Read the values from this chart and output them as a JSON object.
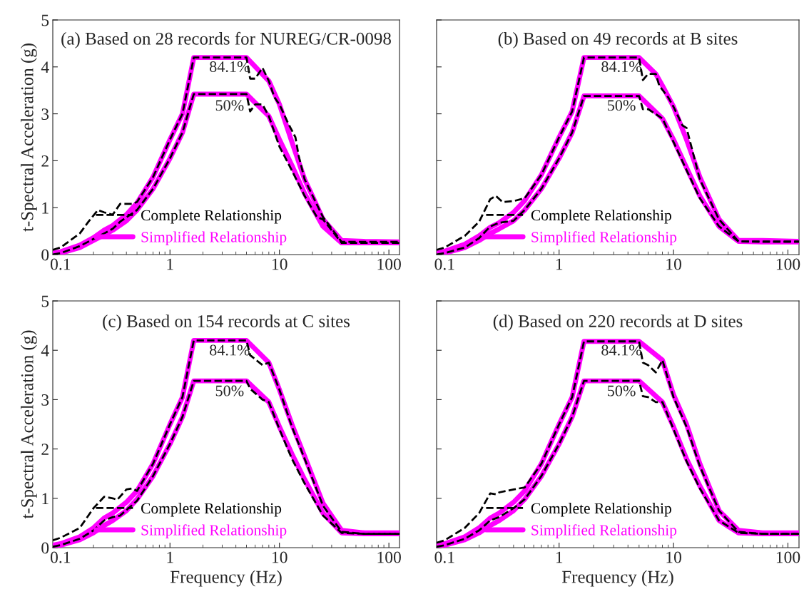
{
  "chart_data": [
    {
      "type": "line",
      "title": "(a) Based on 28 records for NUREG/CR-0098",
      "ylabel": "t-Spectral Acceleration (g)",
      "xlim": [
        0.085,
        125
      ],
      "xticks": [
        0.1,
        1,
        10,
        100
      ],
      "ylim": [
        0,
        5
      ],
      "yticks": [
        0,
        1,
        2,
        3,
        4,
        5
      ],
      "log": "x",
      "grid": false,
      "legend": "bottom",
      "annotations": [
        "84.1%",
        "50%"
      ],
      "series": [
        {
          "name": "Simplified Relationship",
          "color": "#ff00ff",
          "line_style": "solid",
          "x": [
            0.085,
            0.1,
            0.15,
            0.2,
            0.25,
            0.3,
            0.4,
            0.5,
            0.7,
            1,
            1.3,
            1.65,
            5,
            8,
            10,
            13,
            17,
            20,
            25,
            37,
            60,
            125
          ],
          "values": [
            0.03,
            0.06,
            0.2,
            0.36,
            0.52,
            0.62,
            0.85,
            1.1,
            1.65,
            2.45,
            3.0,
            4.2,
            4.2,
            3.7,
            3.2,
            2.4,
            1.6,
            1.25,
            0.75,
            0.3,
            0.28,
            0.27
          ]
        },
        {
          "name": "Simplified Relationship",
          "color": "#ff00ff",
          "line_style": "solid",
          "x": [
            0.085,
            0.1,
            0.15,
            0.2,
            0.25,
            0.3,
            0.4,
            0.5,
            0.7,
            1,
            1.3,
            1.65,
            5,
            8,
            10,
            13,
            17,
            25,
            37,
            60,
            125
          ],
          "values": [
            0.0,
            0.03,
            0.15,
            0.3,
            0.42,
            0.52,
            0.72,
            0.95,
            1.4,
            2.05,
            2.6,
            3.42,
            3.42,
            2.95,
            2.45,
            1.9,
            1.3,
            0.6,
            0.25,
            0.25,
            0.25
          ]
        },
        {
          "name": "Complete Relationship",
          "color": "#000000",
          "line_style": "dashed",
          "x": [
            0.085,
            0.1,
            0.15,
            0.18,
            0.22,
            0.25,
            0.3,
            0.35,
            0.45,
            0.5,
            0.7,
            1,
            1.3,
            1.65,
            5,
            5.4,
            6,
            7,
            8,
            9,
            10,
            12,
            14,
            15,
            17,
            25,
            37,
            60,
            125
          ],
          "values": [
            0.1,
            0.15,
            0.45,
            0.7,
            0.95,
            0.9,
            0.85,
            1.08,
            1.08,
            1.12,
            1.65,
            2.45,
            3.0,
            4.2,
            4.2,
            3.75,
            3.75,
            3.98,
            3.7,
            3.35,
            3.2,
            2.8,
            2.5,
            2.1,
            1.6,
            0.8,
            0.27,
            0.27,
            0.27
          ]
        },
        {
          "name": "Complete Relationship",
          "color": "#000000",
          "line_style": "dashed",
          "x": [
            0.085,
            0.1,
            0.15,
            0.25,
            0.3,
            0.35,
            0.5,
            0.7,
            1,
            1.3,
            1.65,
            5,
            5.4,
            6,
            7,
            8,
            10,
            12,
            17,
            22,
            25,
            37,
            60,
            125
          ],
          "values": [
            0.0,
            0.03,
            0.18,
            0.45,
            0.55,
            0.7,
            0.95,
            1.4,
            2.05,
            2.6,
            3.42,
            3.42,
            3.05,
            3.2,
            3.2,
            2.95,
            2.3,
            1.95,
            1.25,
            0.8,
            0.75,
            0.25,
            0.25,
            0.25
          ]
        }
      ]
    },
    {
      "type": "line",
      "title": "(b) Based on 49 records at B sites",
      "xlim": [
        0.085,
        125
      ],
      "xticks": [
        0.1,
        1,
        10,
        100
      ],
      "ylim": [
        0,
        5
      ],
      "yticks": [
        0,
        1,
        2,
        3,
        4,
        5
      ],
      "log": "x",
      "grid": false,
      "legend": "bottom",
      "tick_labels": "x",
      "annotations": [
        "84.1%",
        "50%"
      ],
      "series": [
        {
          "name": "Simplified Relationship",
          "color": "#ff00ff",
          "line_style": "solid",
          "x": [
            0.085,
            0.1,
            0.15,
            0.2,
            0.25,
            0.3,
            0.4,
            0.5,
            0.7,
            1,
            1.3,
            1.65,
            5,
            7,
            8,
            10,
            13,
            17,
            25,
            37,
            60,
            125
          ],
          "values": [
            0.03,
            0.07,
            0.22,
            0.4,
            0.58,
            0.68,
            0.9,
            1.15,
            1.7,
            2.5,
            3.05,
            4.2,
            4.2,
            3.85,
            3.6,
            3.15,
            2.45,
            1.65,
            0.75,
            0.3,
            0.3,
            0.28
          ]
        },
        {
          "name": "Simplified Relationship",
          "color": "#ff00ff",
          "line_style": "solid",
          "x": [
            0.085,
            0.1,
            0.15,
            0.2,
            0.25,
            0.3,
            0.4,
            0.5,
            0.7,
            1,
            1.3,
            1.65,
            5,
            8,
            10,
            13,
            17,
            25,
            37,
            60,
            125
          ],
          "values": [
            0.0,
            0.03,
            0.15,
            0.3,
            0.45,
            0.55,
            0.72,
            0.95,
            1.4,
            2.05,
            2.6,
            3.38,
            3.38,
            2.9,
            2.45,
            1.85,
            1.25,
            0.6,
            0.28,
            0.27,
            0.27
          ]
        },
        {
          "name": "Complete Relationship",
          "color": "#000000",
          "line_style": "dashed",
          "x": [
            0.085,
            0.1,
            0.15,
            0.2,
            0.25,
            0.28,
            0.32,
            0.4,
            0.5,
            0.7,
            1,
            1.3,
            1.65,
            5,
            5.4,
            6,
            7,
            7.5,
            9,
            10,
            12,
            13,
            17,
            25,
            37,
            60,
            125
          ],
          "values": [
            0.1,
            0.15,
            0.4,
            0.7,
            1.18,
            1.25,
            1.12,
            1.14,
            1.2,
            1.7,
            2.5,
            3.05,
            4.2,
            4.2,
            3.72,
            3.85,
            3.85,
            3.6,
            3.35,
            3.15,
            2.75,
            2.7,
            1.6,
            0.75,
            0.28,
            0.28,
            0.28
          ]
        },
        {
          "name": "Complete Relationship",
          "color": "#000000",
          "line_style": "dashed",
          "x": [
            0.085,
            0.1,
            0.15,
            0.2,
            0.25,
            0.3,
            0.4,
            0.5,
            0.7,
            1,
            1.3,
            1.65,
            5,
            5.4,
            6,
            8,
            10,
            13,
            17,
            25,
            37,
            60,
            125
          ],
          "values": [
            0.0,
            0.03,
            0.15,
            0.35,
            0.6,
            0.68,
            0.72,
            0.95,
            1.4,
            2.05,
            2.6,
            3.38,
            3.38,
            3.1,
            3.1,
            2.9,
            2.4,
            1.8,
            1.2,
            0.6,
            0.28,
            0.27,
            0.27
          ]
        }
      ]
    },
    {
      "type": "line",
      "title": "(c) Based on 154 records at C sites",
      "xlabel": "Frequency (Hz)",
      "ylabel": "t-Spectral Acceleration (g)",
      "xlim": [
        0.085,
        125
      ],
      "xticks": [
        0.1,
        1,
        10,
        100
      ],
      "ylim": [
        0,
        5
      ],
      "yticks": [
        0,
        1,
        2,
        3,
        4,
        5
      ],
      "log": "x",
      "grid": false,
      "legend": "bottom",
      "annotations": [
        "84.1%",
        "50%"
      ],
      "series": [
        {
          "name": "Simplified Relationship",
          "color": "#ff00ff",
          "line_style": "solid",
          "x": [
            0.085,
            0.1,
            0.15,
            0.2,
            0.25,
            0.3,
            0.4,
            0.5,
            0.7,
            1,
            1.3,
            1.65,
            5,
            8,
            10,
            13,
            17,
            25,
            37,
            60,
            125
          ],
          "values": [
            0.05,
            0.08,
            0.22,
            0.4,
            0.6,
            0.7,
            0.92,
            1.15,
            1.7,
            2.5,
            3.05,
            4.2,
            4.2,
            3.75,
            3.2,
            2.5,
            1.85,
            0.9,
            0.35,
            0.3,
            0.3
          ]
        },
        {
          "name": "Simplified Relationship",
          "color": "#ff00ff",
          "line_style": "solid",
          "x": [
            0.085,
            0.1,
            0.15,
            0.2,
            0.25,
            0.3,
            0.4,
            0.5,
            0.7,
            1,
            1.3,
            1.65,
            5,
            8,
            10,
            13,
            17,
            25,
            37,
            60,
            125
          ],
          "values": [
            0.02,
            0.05,
            0.16,
            0.3,
            0.45,
            0.55,
            0.75,
            0.98,
            1.45,
            2.1,
            2.65,
            3.38,
            3.38,
            2.95,
            2.45,
            1.9,
            1.38,
            0.7,
            0.3,
            0.28,
            0.28
          ]
        },
        {
          "name": "Complete Relationship",
          "color": "#000000",
          "line_style": "dashed",
          "x": [
            0.085,
            0.1,
            0.15,
            0.2,
            0.25,
            0.3,
            0.33,
            0.4,
            0.45,
            0.5,
            0.7,
            1,
            1.3,
            1.65,
            5,
            5.4,
            7,
            8,
            10,
            13,
            17,
            25,
            37,
            60,
            125
          ],
          "values": [
            0.15,
            0.2,
            0.4,
            0.8,
            1.03,
            1.0,
            0.97,
            1.18,
            1.2,
            1.15,
            1.7,
            2.5,
            3.05,
            4.2,
            4.2,
            3.9,
            3.7,
            3.75,
            3.2,
            2.45,
            1.8,
            0.85,
            0.32,
            0.28,
            0.28
          ]
        },
        {
          "name": "Complete Relationship",
          "color": "#000000",
          "line_style": "dashed",
          "x": [
            0.085,
            0.1,
            0.15,
            0.2,
            0.25,
            0.3,
            0.35,
            0.5,
            0.7,
            1,
            1.3,
            1.65,
            5,
            5.4,
            7,
            8,
            10,
            13,
            17,
            25,
            37,
            60,
            125
          ],
          "values": [
            0.02,
            0.05,
            0.18,
            0.35,
            0.55,
            0.62,
            0.65,
            0.95,
            1.45,
            2.1,
            2.65,
            3.38,
            3.38,
            3.22,
            3.0,
            2.95,
            2.4,
            1.8,
            1.3,
            0.65,
            0.3,
            0.28,
            0.28
          ]
        }
      ]
    },
    {
      "type": "line",
      "title": "(d) Based on 220 records at D sites",
      "xlabel": "Frequency (Hz)",
      "xlim": [
        0.085,
        125
      ],
      "xticks": [
        0.1,
        1,
        10,
        100
      ],
      "ylim": [
        0,
        5
      ],
      "yticks": [
        0,
        1,
        2,
        3,
        4,
        5
      ],
      "log": "x",
      "grid": false,
      "legend": "bottom",
      "tick_labels": "x",
      "annotations": [
        "84.1%",
        "50%"
      ],
      "series": [
        {
          "name": "Simplified Relationship",
          "color": "#ff00ff",
          "line_style": "solid",
          "x": [
            0.085,
            0.1,
            0.15,
            0.2,
            0.25,
            0.3,
            0.4,
            0.5,
            0.7,
            1,
            1.3,
            1.65,
            5,
            8,
            10,
            13,
            17,
            25,
            37,
            60,
            125
          ],
          "values": [
            0.05,
            0.08,
            0.22,
            0.4,
            0.6,
            0.7,
            0.92,
            1.15,
            1.7,
            2.5,
            3.05,
            4.18,
            4.18,
            3.8,
            3.1,
            2.5,
            1.7,
            0.75,
            0.35,
            0.3,
            0.3
          ]
        },
        {
          "name": "Simplified Relationship",
          "color": "#ff00ff",
          "line_style": "solid",
          "x": [
            0.085,
            0.1,
            0.15,
            0.2,
            0.25,
            0.3,
            0.4,
            0.5,
            0.7,
            1,
            1.3,
            1.65,
            5,
            8,
            10,
            13,
            17,
            25,
            37,
            60,
            125
          ],
          "values": [
            0.02,
            0.05,
            0.16,
            0.3,
            0.45,
            0.55,
            0.75,
            0.98,
            1.45,
            2.1,
            2.65,
            3.38,
            3.38,
            2.95,
            2.45,
            1.8,
            1.25,
            0.55,
            0.3,
            0.28,
            0.28
          ]
        },
        {
          "name": "Complete Relationship",
          "color": "#000000",
          "line_style": "dashed",
          "x": [
            0.085,
            0.1,
            0.15,
            0.2,
            0.25,
            0.28,
            0.3,
            0.4,
            0.5,
            0.7,
            1,
            1.3,
            1.65,
            5,
            5.4,
            6,
            7,
            8,
            10,
            13,
            17,
            25,
            37,
            60,
            125
          ],
          "values": [
            0.1,
            0.15,
            0.4,
            0.7,
            1.1,
            1.08,
            1.12,
            1.18,
            1.22,
            1.7,
            2.5,
            3.05,
            4.18,
            4.18,
            3.75,
            3.7,
            3.55,
            3.8,
            3.05,
            2.45,
            1.65,
            0.75,
            0.32,
            0.28,
            0.28
          ]
        },
        {
          "name": "Complete Relationship",
          "color": "#000000",
          "line_style": "dashed",
          "x": [
            0.085,
            0.1,
            0.15,
            0.2,
            0.25,
            0.3,
            0.4,
            0.5,
            0.7,
            1,
            1.3,
            1.65,
            5,
            5.4,
            6,
            7,
            8,
            10,
            13,
            17,
            25,
            37,
            60,
            125
          ],
          "values": [
            0.02,
            0.05,
            0.18,
            0.35,
            0.55,
            0.62,
            0.8,
            0.98,
            1.45,
            2.1,
            2.65,
            3.38,
            3.38,
            3.07,
            3.05,
            2.95,
            2.95,
            2.4,
            1.75,
            1.2,
            0.55,
            0.3,
            0.28,
            0.28
          ]
        }
      ]
    }
  ]
}
